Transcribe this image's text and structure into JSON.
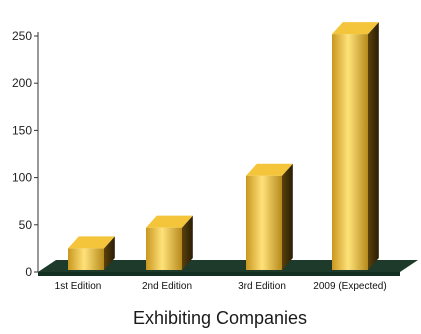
{
  "chart_data": {
    "type": "bar",
    "title": "Exhibiting Companies",
    "xlabel": "",
    "ylabel": "",
    "categories": [
      "1st Edition",
      "2nd Edition",
      "3rd Edition",
      "2009 (Expected)"
    ],
    "values": [
      25,
      47,
      102,
      252
    ],
    "ylim": [
      0,
      250
    ],
    "yticks": [
      "0",
      "50",
      "100",
      "150",
      "200",
      "250"
    ],
    "grid": false,
    "legend": "none"
  },
  "colors": {
    "bar_light": "#ffe27a",
    "bar_mid": "#e0b12f",
    "bar_dark": "#9c7418",
    "bar_side": "#3a2a08",
    "bar_top": "#f4c53a",
    "floor": "#1e3a2a",
    "axis": "#333333"
  }
}
